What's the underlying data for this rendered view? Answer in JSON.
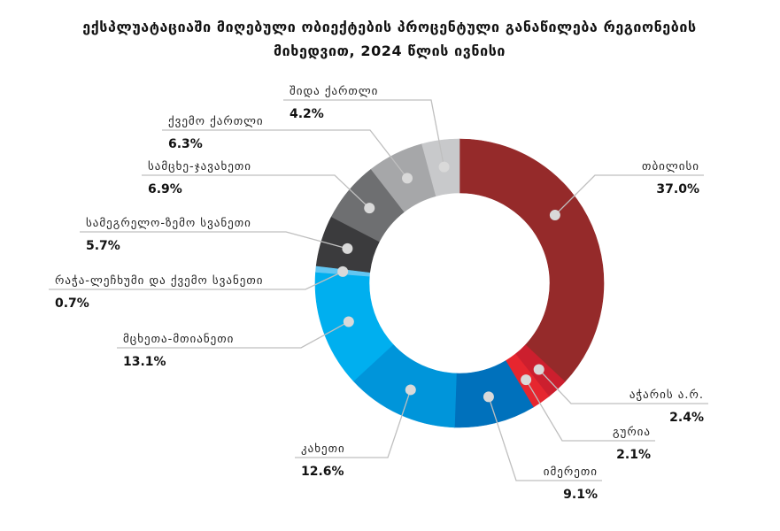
{
  "chart_data": {
    "type": "pie",
    "donut": true,
    "title_lines": [
      "ექსპლუატაციაში მიღებული ობიექტების პროცენტული განაწილება რეგიონების",
      "მიხედვით, 2024 წლის ივნისი"
    ],
    "categories": [
      "თბილისი",
      "აჭარის ა.რ.",
      "გურია",
      "იმერეთი",
      "კახეთი",
      "მცხეთა-მთიანეთი",
      "რაჭა-ლეჩხუმი და ქვემო სვანეთი",
      "სამეგრელო-ზემო სვანეთი",
      "სამცხე-ჯავახეთი",
      "ქვემო ქართლი",
      "შიდა ქართლი"
    ],
    "values": [
      37.0,
      2.4,
      2.1,
      9.1,
      12.6,
      13.1,
      0.7,
      5.7,
      6.9,
      6.3,
      4.2
    ],
    "value_labels": [
      "37.0%",
      "2.4%",
      "2.1%",
      "9.1%",
      "12.6%",
      "13.1%",
      "0.7%",
      "5.7%",
      "6.9%",
      "6.3%",
      "4.2%"
    ],
    "colors": [
      "#952A2A",
      "#CC1F2E",
      "#E6262F",
      "#0071BC",
      "#0095DA",
      "#00AFEF",
      "#62C6F2",
      "#3B3B3D",
      "#6E6F71",
      "#A6A7A9",
      "#C8C9CB"
    ]
  }
}
